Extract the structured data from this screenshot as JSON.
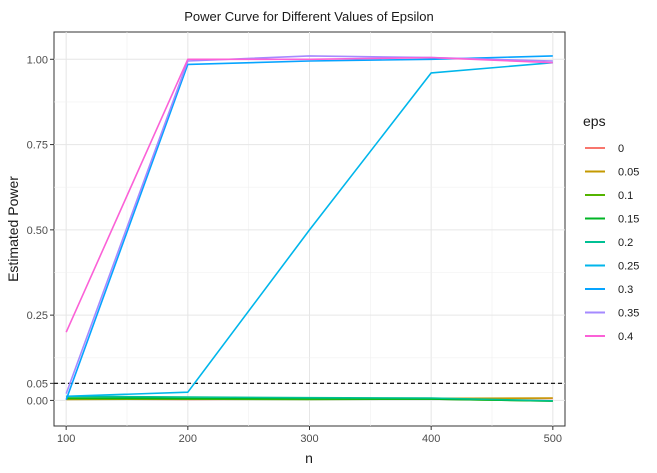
{
  "chart_data": {
    "type": "line",
    "title": "Power Curve for Different Values of Epsilon",
    "xlabel": "n",
    "ylabel": "Estimated Power",
    "xlim": [
      90,
      510
    ],
    "ylim": [
      -0.075,
      1.08
    ],
    "x_ticks": [
      100,
      200,
      300,
      400,
      500
    ],
    "y_ticks": [
      0.0,
      0.05,
      0.25,
      0.5,
      0.75,
      1.0
    ],
    "y_tick_labels": [
      "0.00",
      "0.05",
      "0.25",
      "0.50",
      "0.75",
      "1.00"
    ],
    "reference_line": {
      "y": 0.05,
      "style": "dashed",
      "color": "#000000"
    },
    "grid": true,
    "legend": {
      "title": "eps",
      "position": "right"
    },
    "x": [
      100,
      200,
      300,
      400,
      500
    ],
    "series": [
      {
        "name": "0",
        "color": "#F8766D",
        "values": [
          0.004,
          0.003,
          0.004,
          0.005,
          0.006
        ]
      },
      {
        "name": "0.05",
        "color": "#C49A00",
        "values": [
          0.003,
          0.004,
          0.005,
          0.006,
          0.007
        ]
      },
      {
        "name": "0.1",
        "color": "#53B400",
        "values": [
          0.005,
          0.004,
          0.003,
          0.004,
          -0.002
        ]
      },
      {
        "name": "0.15",
        "color": "#00B526",
        "values": [
          0.007,
          0.006,
          0.005,
          0.004,
          -0.002
        ]
      },
      {
        "name": "0.2",
        "color": "#00C094",
        "values": [
          0.012,
          0.01,
          0.008,
          0.007,
          -0.001
        ]
      },
      {
        "name": "0.25",
        "color": "#00B6EB",
        "values": [
          0.012,
          0.024,
          0.5,
          0.96,
          0.99
        ]
      },
      {
        "name": "0.3",
        "color": "#06A4FF",
        "values": [
          0.002,
          0.985,
          0.995,
          1.0,
          1.01
        ]
      },
      {
        "name": "0.35",
        "color": "#A58AFF",
        "values": [
          0.02,
          0.995,
          1.01,
          1.005,
          0.995
        ]
      },
      {
        "name": "0.4",
        "color": "#FB61D7",
        "values": [
          0.2,
          1.0,
          1.0,
          1.005,
          0.99
        ]
      }
    ]
  }
}
